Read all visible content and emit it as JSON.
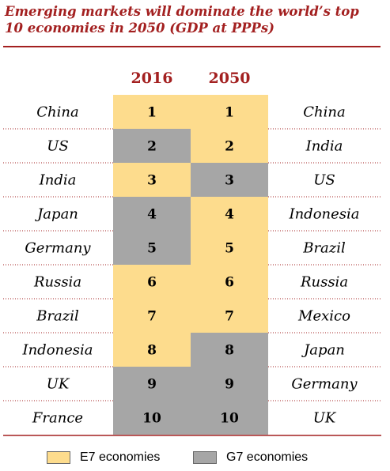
{
  "title": "Emerging markets will dominate the world’s top 10 economies in 2050 (GDP at PPPs)",
  "colors": {
    "title": "#a32020",
    "e7": "#fddc8d",
    "g7": "#a6a6a6",
    "row_divider": "#a32020"
  },
  "chart_data": {
    "type": "table",
    "title": "Emerging markets will dominate the world’s top 10 economies in 2050 (GDP at PPPs)",
    "columns": [
      "2016",
      "2050"
    ],
    "rows": [
      {
        "rank": "1",
        "left_country": "China",
        "rank_2016": "1",
        "group_2016": "E7",
        "rank_2050": "1",
        "group_2050": "E7",
        "right_country": "China"
      },
      {
        "rank": "2",
        "left_country": "US",
        "rank_2016": "2",
        "group_2016": "G7",
        "rank_2050": "2",
        "group_2050": "E7",
        "right_country": "India"
      },
      {
        "rank": "3",
        "left_country": "India",
        "rank_2016": "3",
        "group_2016": "E7",
        "rank_2050": "3",
        "group_2050": "G7",
        "right_country": "US"
      },
      {
        "rank": "4",
        "left_country": "Japan",
        "rank_2016": "4",
        "group_2016": "G7",
        "rank_2050": "4",
        "group_2050": "E7",
        "right_country": "Indonesia"
      },
      {
        "rank": "5",
        "left_country": "Germany",
        "rank_2016": "5",
        "group_2016": "G7",
        "rank_2050": "5",
        "group_2050": "E7",
        "right_country": "Brazil"
      },
      {
        "rank": "6",
        "left_country": "Russia",
        "rank_2016": "6",
        "group_2016": "E7",
        "rank_2050": "6",
        "group_2050": "E7",
        "right_country": "Russia"
      },
      {
        "rank": "7",
        "left_country": "Brazil",
        "rank_2016": "7",
        "group_2016": "E7",
        "rank_2050": "7",
        "group_2050": "E7",
        "right_country": "Mexico"
      },
      {
        "rank": "8",
        "left_country": "Indonesia",
        "rank_2016": "8",
        "group_2016": "E7",
        "rank_2050": "8",
        "group_2050": "G7",
        "right_country": "Japan"
      },
      {
        "rank": "9",
        "left_country": "UK",
        "rank_2016": "9",
        "group_2016": "G7",
        "rank_2050": "9",
        "group_2050": "G7",
        "right_country": "Germany"
      },
      {
        "rank": "10",
        "left_country": "France",
        "rank_2016": "10",
        "group_2016": "G7",
        "rank_2050": "10",
        "group_2050": "G7",
        "right_country": "UK"
      }
    ],
    "legend": [
      {
        "key": "E7",
        "label": "E7 economies"
      },
      {
        "key": "G7",
        "label": "G7 economies"
      }
    ],
    "legend_position": "bottom"
  }
}
